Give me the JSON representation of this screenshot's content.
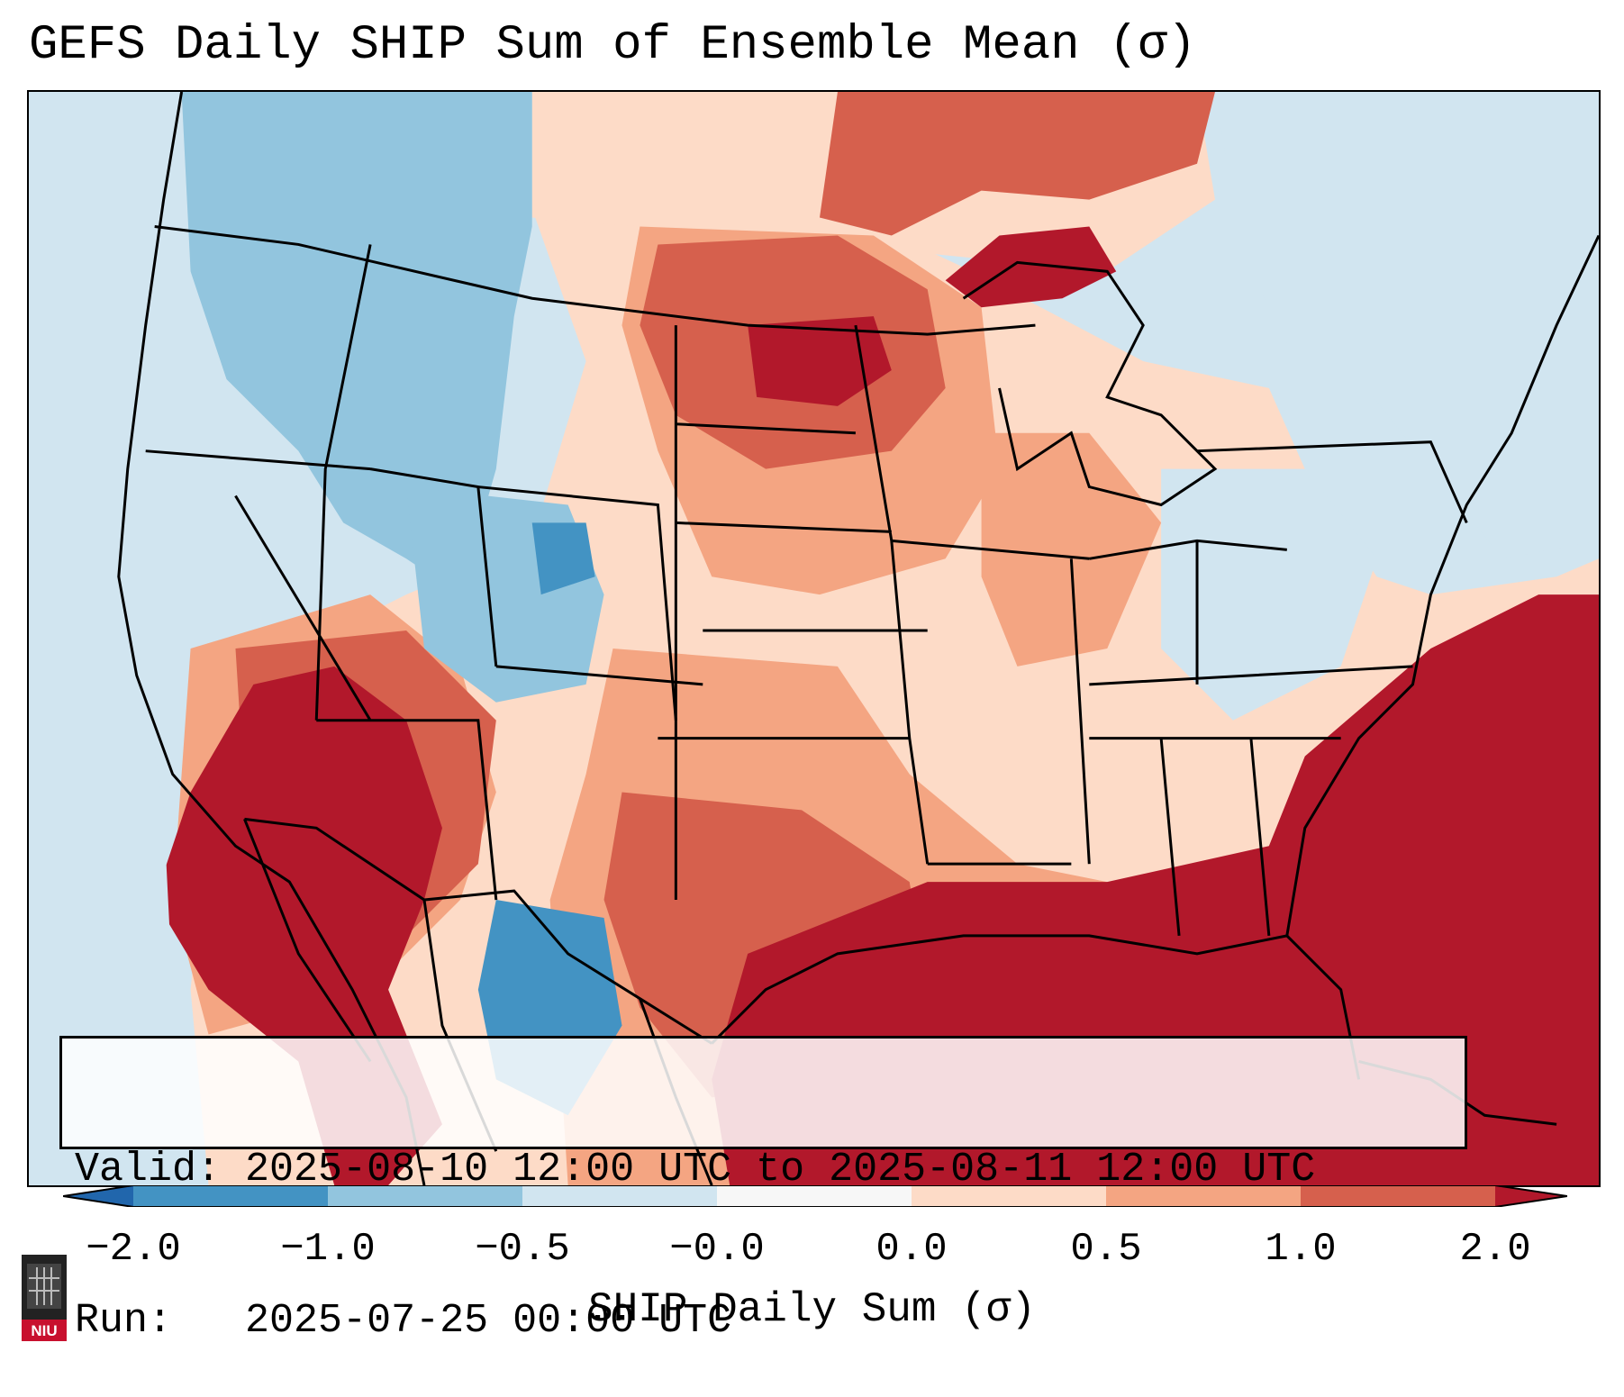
{
  "title": "GEFS Daily SHIP Sum of Ensemble Mean (σ)",
  "info": {
    "valid_label": "Valid:",
    "valid_value": "2025-08-10 12:00 UTC to 2025-08-11 12:00 UTC",
    "run_label": "Run:",
    "run_value": "2025-07-25 00:00 UTC"
  },
  "colorbar": {
    "label": "SHIP Daily Sum (σ)",
    "ticks": [
      "−2.0",
      "−1.0",
      "−0.5",
      "−0.0",
      "0.0",
      "0.5",
      "1.0",
      "2.0"
    ],
    "colors": [
      "#2166ac",
      "#4393c3",
      "#92c5de",
      "#d1e5f0",
      "#fddbc7",
      "#f4a582",
      "#d6604d",
      "#b2182b"
    ]
  },
  "logo": {
    "text": "NIU",
    "color": "#c8102e"
  },
  "legend_colors": {
    "strong_negative": "#4393c3",
    "negative": "#92c5de",
    "weak_negative": "#d1e5f0",
    "weak_positive": "#fddbc7",
    "positive": "#f4a582",
    "strong_positive": "#d6604d",
    "very_strong_positive": "#b2182b"
  }
}
